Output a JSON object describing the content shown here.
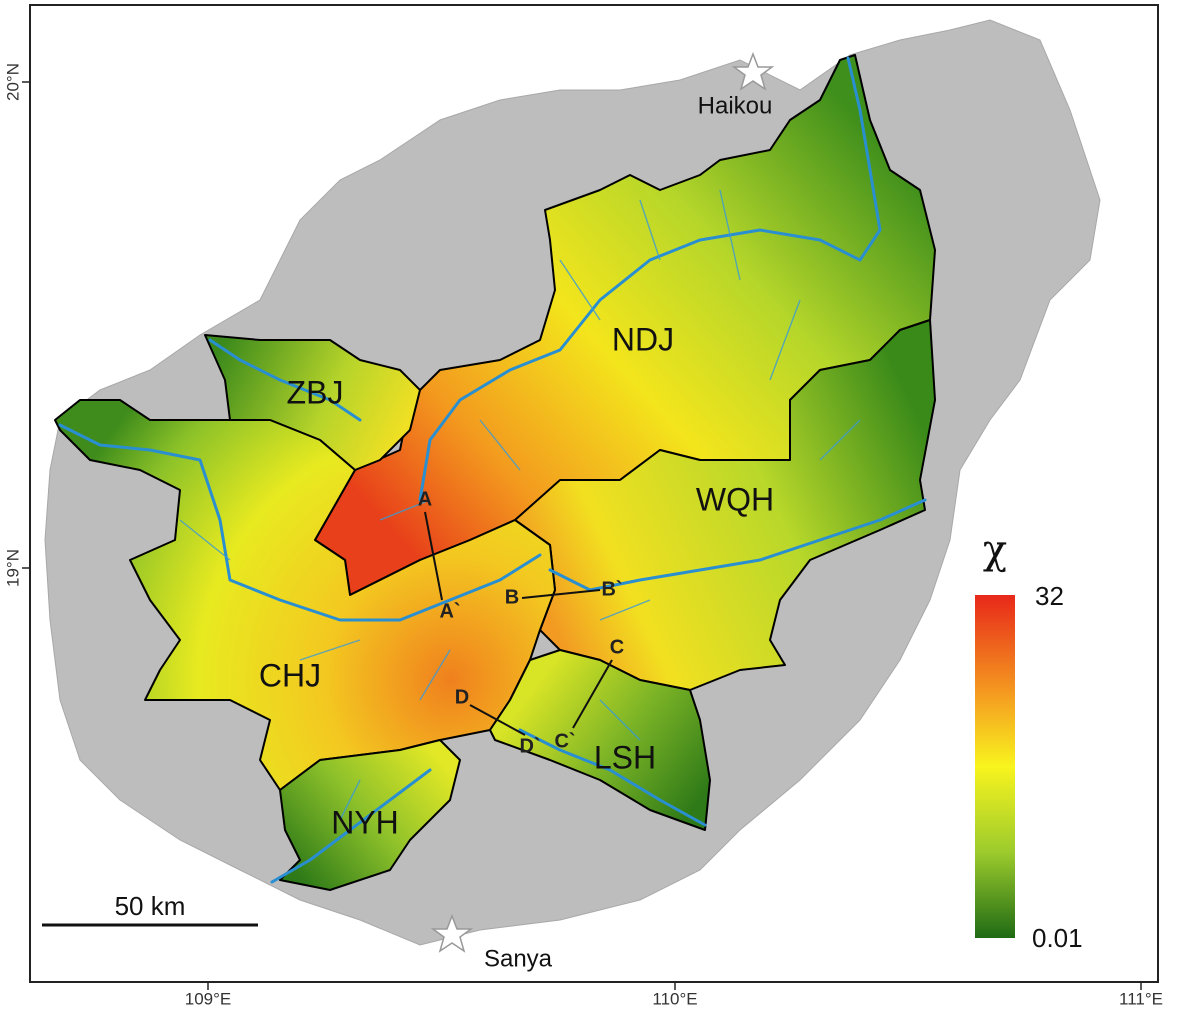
{
  "axes": {
    "x_ticks": [
      "109°E",
      "110°E",
      "111°E"
    ],
    "y_ticks": [
      "20°N",
      "19°N"
    ]
  },
  "cities": [
    "Haikou",
    "Sanya"
  ],
  "basins": [
    "NDJ",
    "ZBJ",
    "WQH",
    "CHJ",
    "LSH",
    "NYH"
  ],
  "profiles": [
    "A",
    "A`",
    "B",
    "B`",
    "C",
    "C`",
    "D",
    "D`"
  ],
  "scale_bar": "50 km",
  "legend": {
    "symbol": "χ",
    "max": 32,
    "min": 0.01
  }
}
